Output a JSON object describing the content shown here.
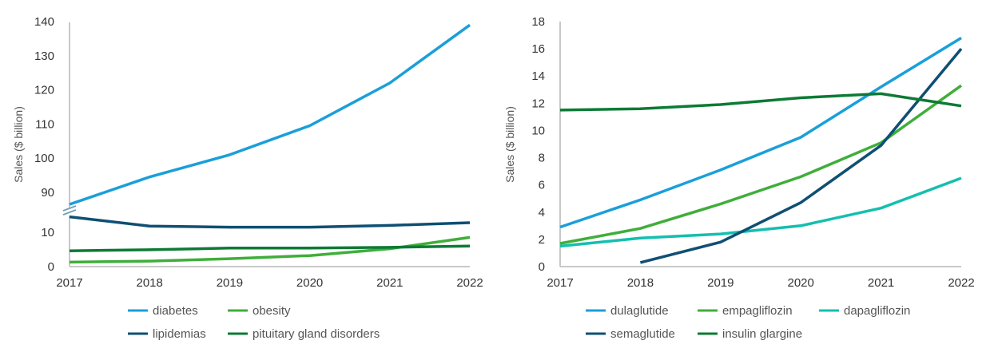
{
  "chart_data": [
    {
      "type": "line",
      "title": "",
      "xlabel": "",
      "ylabel": "Sales ($ billion)",
      "categories": [
        "2017",
        "2018",
        "2019",
        "2020",
        "2021",
        "2022"
      ],
      "y_axis_break": true,
      "ylim_lower": [
        0,
        15
      ],
      "ylim_upper": [
        85,
        140
      ],
      "yticks_lower": [
        "0",
        "10"
      ],
      "yticks_upper": [
        "90",
        "100",
        "110",
        "120",
        "130",
        "140"
      ],
      "grid": false,
      "legend_position": "bottom",
      "series": [
        {
          "name": "diabetes",
          "color": "#1a9fd9",
          "values": [
            86.5,
            94.5,
            101,
            109.5,
            122,
            139
          ]
        },
        {
          "name": "obesity",
          "color": "#3fae3a",
          "values": [
            1.3,
            1.6,
            2.3,
            3.2,
            5.2,
            8.5
          ]
        },
        {
          "name": "lipidemias",
          "color": "#0f4f73",
          "values": [
            14.5,
            11.8,
            11.5,
            11.5,
            12.0,
            12.8
          ]
        },
        {
          "name": "pituitary gland disorders",
          "color": "#0d7a35",
          "values": [
            4.6,
            4.9,
            5.4,
            5.4,
            5.6,
            6.0
          ]
        }
      ]
    },
    {
      "type": "line",
      "title": "",
      "xlabel": "",
      "ylabel": "Sales ($ billion)",
      "categories": [
        "2017",
        "2018",
        "2019",
        "2020",
        "2021",
        "2022"
      ],
      "ylim": [
        0,
        18
      ],
      "yticks": [
        "0",
        "2",
        "4",
        "6",
        "8",
        "10",
        "12",
        "14",
        "16",
        "18"
      ],
      "grid": false,
      "legend_position": "bottom",
      "series": [
        {
          "name": "dulaglutide",
          "color": "#1a9fd9",
          "values": [
            2.9,
            4.9,
            7.1,
            9.5,
            13.2,
            16.8
          ]
        },
        {
          "name": "empagliflozin",
          "color": "#3fae3a",
          "values": [
            1.7,
            2.8,
            4.6,
            6.6,
            9.1,
            13.3
          ]
        },
        {
          "name": "dapagliflozin",
          "color": "#14bfae",
          "values": [
            1.5,
            2.1,
            2.4,
            3.0,
            4.3,
            6.5
          ]
        },
        {
          "name": "semaglutide",
          "color": "#0f4f73",
          "values": [
            null,
            0.3,
            1.8,
            4.7,
            8.9,
            16.0
          ]
        },
        {
          "name": "insulin glargine",
          "color": "#0d7a35",
          "values": [
            11.5,
            11.6,
            11.9,
            12.4,
            12.7,
            11.8
          ]
        }
      ]
    }
  ]
}
